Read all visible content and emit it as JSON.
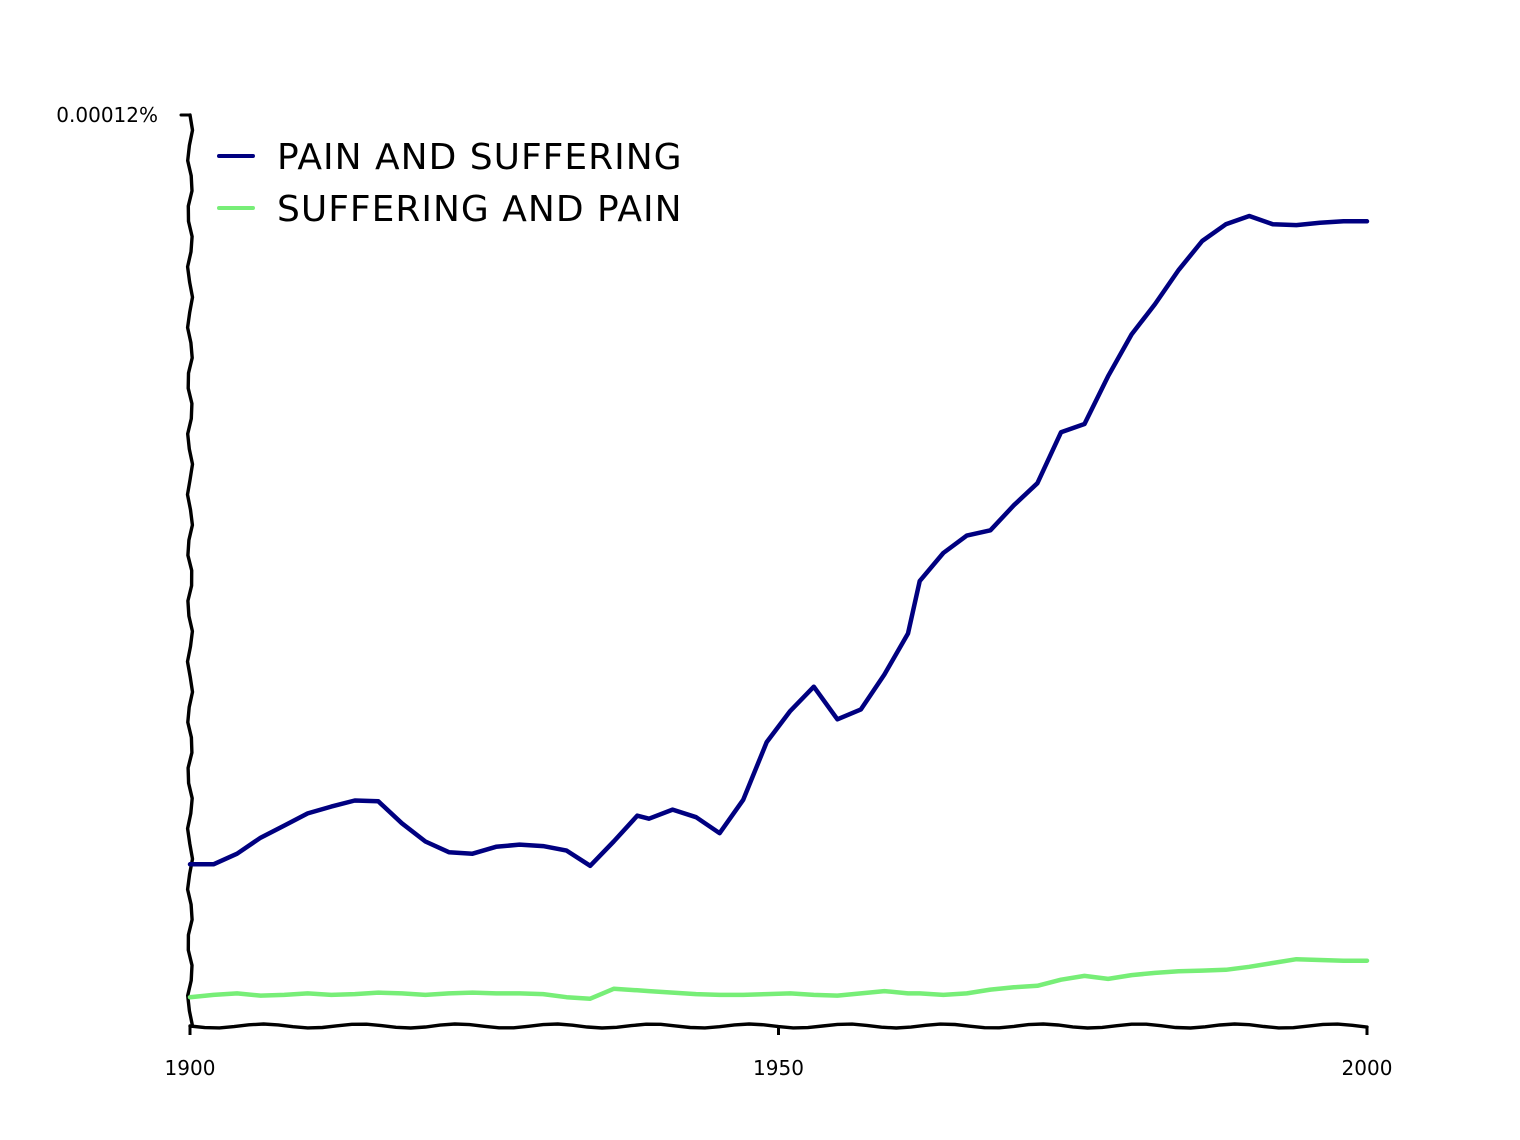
{
  "chart_data": {
    "type": "line",
    "title": "",
    "xlabel": "",
    "ylabel": "",
    "xlim": [
      1900,
      2000
    ],
    "ylim": [
      0,
      0.00012
    ],
    "x_ticks": [
      1900,
      1950,
      2000
    ],
    "y_tick_label": "0.00012%",
    "legend": {
      "position": "top-left",
      "entries": [
        "PAIN AND SUFFERING",
        "SUFFERING AND PAIN"
      ]
    },
    "grid": false,
    "series": [
      {
        "name": "PAIN AND SUFFERING",
        "color": "#000080",
        "x": [
          1900,
          1902,
          1904,
          1906,
          1908,
          1910,
          1912,
          1914,
          1916,
          1918,
          1920,
          1922,
          1924,
          1926,
          1928,
          1930,
          1932,
          1934,
          1936,
          1938,
          1939,
          1941,
          1943,
          1945,
          1947,
          1949,
          1951,
          1953,
          1955,
          1957,
          1959,
          1961,
          1962,
          1964,
          1966,
          1968,
          1970,
          1972,
          1974,
          1976,
          1978,
          1980,
          1982,
          1984,
          1986,
          1988,
          1990,
          1992,
          1994,
          1996,
          1998,
          2000
        ],
        "values": [
          2.13e-05,
          2.13e-05,
          2.27e-05,
          2.48e-05,
          2.64e-05,
          2.8e-05,
          2.89e-05,
          2.97e-05,
          2.96e-05,
          2.67e-05,
          2.43e-05,
          2.29e-05,
          2.27e-05,
          2.36e-05,
          2.39e-05,
          2.37e-05,
          2.31e-05,
          2.11e-05,
          2.43e-05,
          2.77e-05,
          2.73e-05,
          2.85e-05,
          2.75e-05,
          2.54e-05,
          2.98e-05,
          3.74e-05,
          4.15e-05,
          4.47e-05,
          4.04e-05,
          4.17e-05,
          4.63e-05,
          5.17e-05,
          5.86e-05,
          6.23e-05,
          6.46e-05,
          6.53e-05,
          6.86e-05,
          7.15e-05,
          7.82e-05,
          7.93e-05,
          8.56e-05,
          9.11e-05,
          9.51e-05,
          9.96e-05,
          0.0001034,
          0.0001056,
          0.0001067,
          0.0001056,
          0.0001055,
          0.0001058,
          0.000106,
          0.000106
        ]
      },
      {
        "name": "SUFFERING AND PAIN",
        "color": "#77ee77",
        "x": [
          1900,
          1902,
          1904,
          1906,
          1908,
          1910,
          1912,
          1914,
          1916,
          1918,
          1920,
          1922,
          1924,
          1926,
          1928,
          1930,
          1932,
          1934,
          1936,
          1938,
          1939,
          1941,
          1943,
          1945,
          1947,
          1949,
          1951,
          1953,
          1955,
          1957,
          1959,
          1961,
          1962,
          1964,
          1966,
          1968,
          1970,
          1972,
          1974,
          1976,
          1978,
          1980,
          1982,
          1984,
          1986,
          1988,
          1990,
          1992,
          1994,
          1996,
          1998,
          2000
        ],
        "values": [
          3.8e-06,
          4.1e-06,
          4.3e-06,
          4e-06,
          4.1e-06,
          4.3e-06,
          4.1e-06,
          4.2e-06,
          4.4e-06,
          4.3e-06,
          4.1e-06,
          4.3e-06,
          4.4e-06,
          4.3e-06,
          4.3e-06,
          4.2e-06,
          3.8e-06,
          3.6e-06,
          4.9e-06,
          4.7e-06,
          4.6e-06,
          4.4e-06,
          4.2e-06,
          4.1e-06,
          4.1e-06,
          4.2e-06,
          4.3e-06,
          4.1e-06,
          4e-06,
          4.3e-06,
          4.6e-06,
          4.3e-06,
          4.3e-06,
          4.1e-06,
          4.3e-06,
          4.8e-06,
          5.1e-06,
          5.3e-06,
          6.1e-06,
          6.6e-06,
          6.2e-06,
          6.7e-06,
          7e-06,
          7.2e-06,
          7.3e-06,
          7.4e-06,
          7.8e-06,
          8.3e-06,
          8.8e-06,
          8.7e-06,
          8.6e-06,
          8.6e-06
        ]
      }
    ]
  }
}
